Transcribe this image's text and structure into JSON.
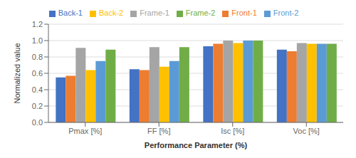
{
  "chart_data": {
    "type": "bar",
    "xlabel": "Performance Parameter (%)",
    "ylabel": "Normalized value",
    "categories": [
      "Pmax [%]",
      "FF [%]",
      "Isc [%]",
      "Voc [%]"
    ],
    "series": [
      {
        "name": "Back-1",
        "color": "#4472C4",
        "values": [
          0.55,
          0.65,
          0.93,
          0.89
        ]
      },
      {
        "name": "Front-1",
        "color": "#ED7D31",
        "values": [
          0.57,
          0.64,
          0.96,
          0.87
        ]
      },
      {
        "name": "Frame-1",
        "color": "#A5A5A5",
        "values": [
          0.91,
          0.92,
          1.0,
          0.97
        ]
      },
      {
        "name": "Back-2",
        "color": "#FFC000",
        "values": [
          0.64,
          0.68,
          0.97,
          0.96
        ]
      },
      {
        "name": "Front-2",
        "color": "#5B9BD5",
        "values": [
          0.75,
          0.75,
          1.0,
          0.96
        ]
      },
      {
        "name": "Frame-2",
        "color": "#70AD47",
        "values": [
          0.89,
          0.92,
          1.0,
          0.96
        ]
      }
    ],
    "ylim": [
      0,
      1.2
    ],
    "yticks": [
      {
        "value": 0,
        "label": "0.0"
      },
      0.2,
      0.4,
      0.6,
      0.8,
      {
        "value": 1.0,
        "label": "1.0"
      },
      1.2
    ],
    "grid": true,
    "legend": "top"
  }
}
